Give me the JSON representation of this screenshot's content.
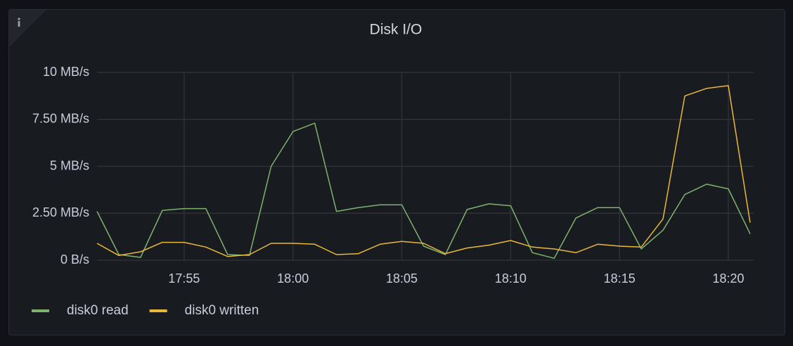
{
  "chart_data": {
    "type": "line",
    "title": "Disk I/O",
    "x": [
      "17:51",
      "17:52",
      "17:53",
      "17:54",
      "17:55",
      "17:56",
      "17:57",
      "17:58",
      "17:59",
      "18:00",
      "18:01",
      "18:02",
      "18:03",
      "18:04",
      "18:05",
      "18:06",
      "18:07",
      "18:08",
      "18:09",
      "18:10",
      "18:11",
      "18:12",
      "18:13",
      "18:14",
      "18:15",
      "18:16",
      "18:17",
      "18:18",
      "18:19",
      "18:20",
      "18:21"
    ],
    "xlim": [
      "17:51",
      "18:21"
    ],
    "xticks": [
      "17:55",
      "18:00",
      "18:05",
      "18:10",
      "18:15",
      "18:20"
    ],
    "ylim": [
      0,
      10
    ],
    "yticks": [
      {
        "value": 0,
        "label": "0 B/s"
      },
      {
        "value": 2.5,
        "label": "2.50 MB/s"
      },
      {
        "value": 5,
        "label": "5 MB/s"
      },
      {
        "value": 7.5,
        "label": "7.50 MB/s"
      },
      {
        "value": 10,
        "label": "10 MB/s"
      }
    ],
    "grid": true,
    "legend": "bottom-left",
    "series": [
      {
        "name": "disk0 read",
        "color": "#7eb26d",
        "values": [
          2.6,
          0.3,
          0.15,
          2.65,
          2.75,
          2.75,
          0.3,
          0.25,
          5.0,
          6.85,
          7.3,
          2.6,
          2.8,
          2.95,
          2.95,
          0.75,
          0.3,
          2.7,
          3.0,
          2.9,
          0.4,
          0.1,
          2.25,
          2.8,
          2.8,
          0.6,
          1.6,
          3.5,
          4.05,
          3.8,
          1.4
        ]
      },
      {
        "name": "disk0 written",
        "color": "#eab839",
        "values": [
          0.9,
          0.25,
          0.45,
          0.95,
          0.95,
          0.7,
          0.2,
          0.3,
          0.9,
          0.9,
          0.85,
          0.3,
          0.35,
          0.85,
          1.0,
          0.9,
          0.35,
          0.65,
          0.8,
          1.05,
          0.7,
          0.6,
          0.4,
          0.85,
          0.75,
          0.7,
          2.2,
          8.75,
          9.15,
          9.3,
          2.0
        ]
      }
    ]
  }
}
